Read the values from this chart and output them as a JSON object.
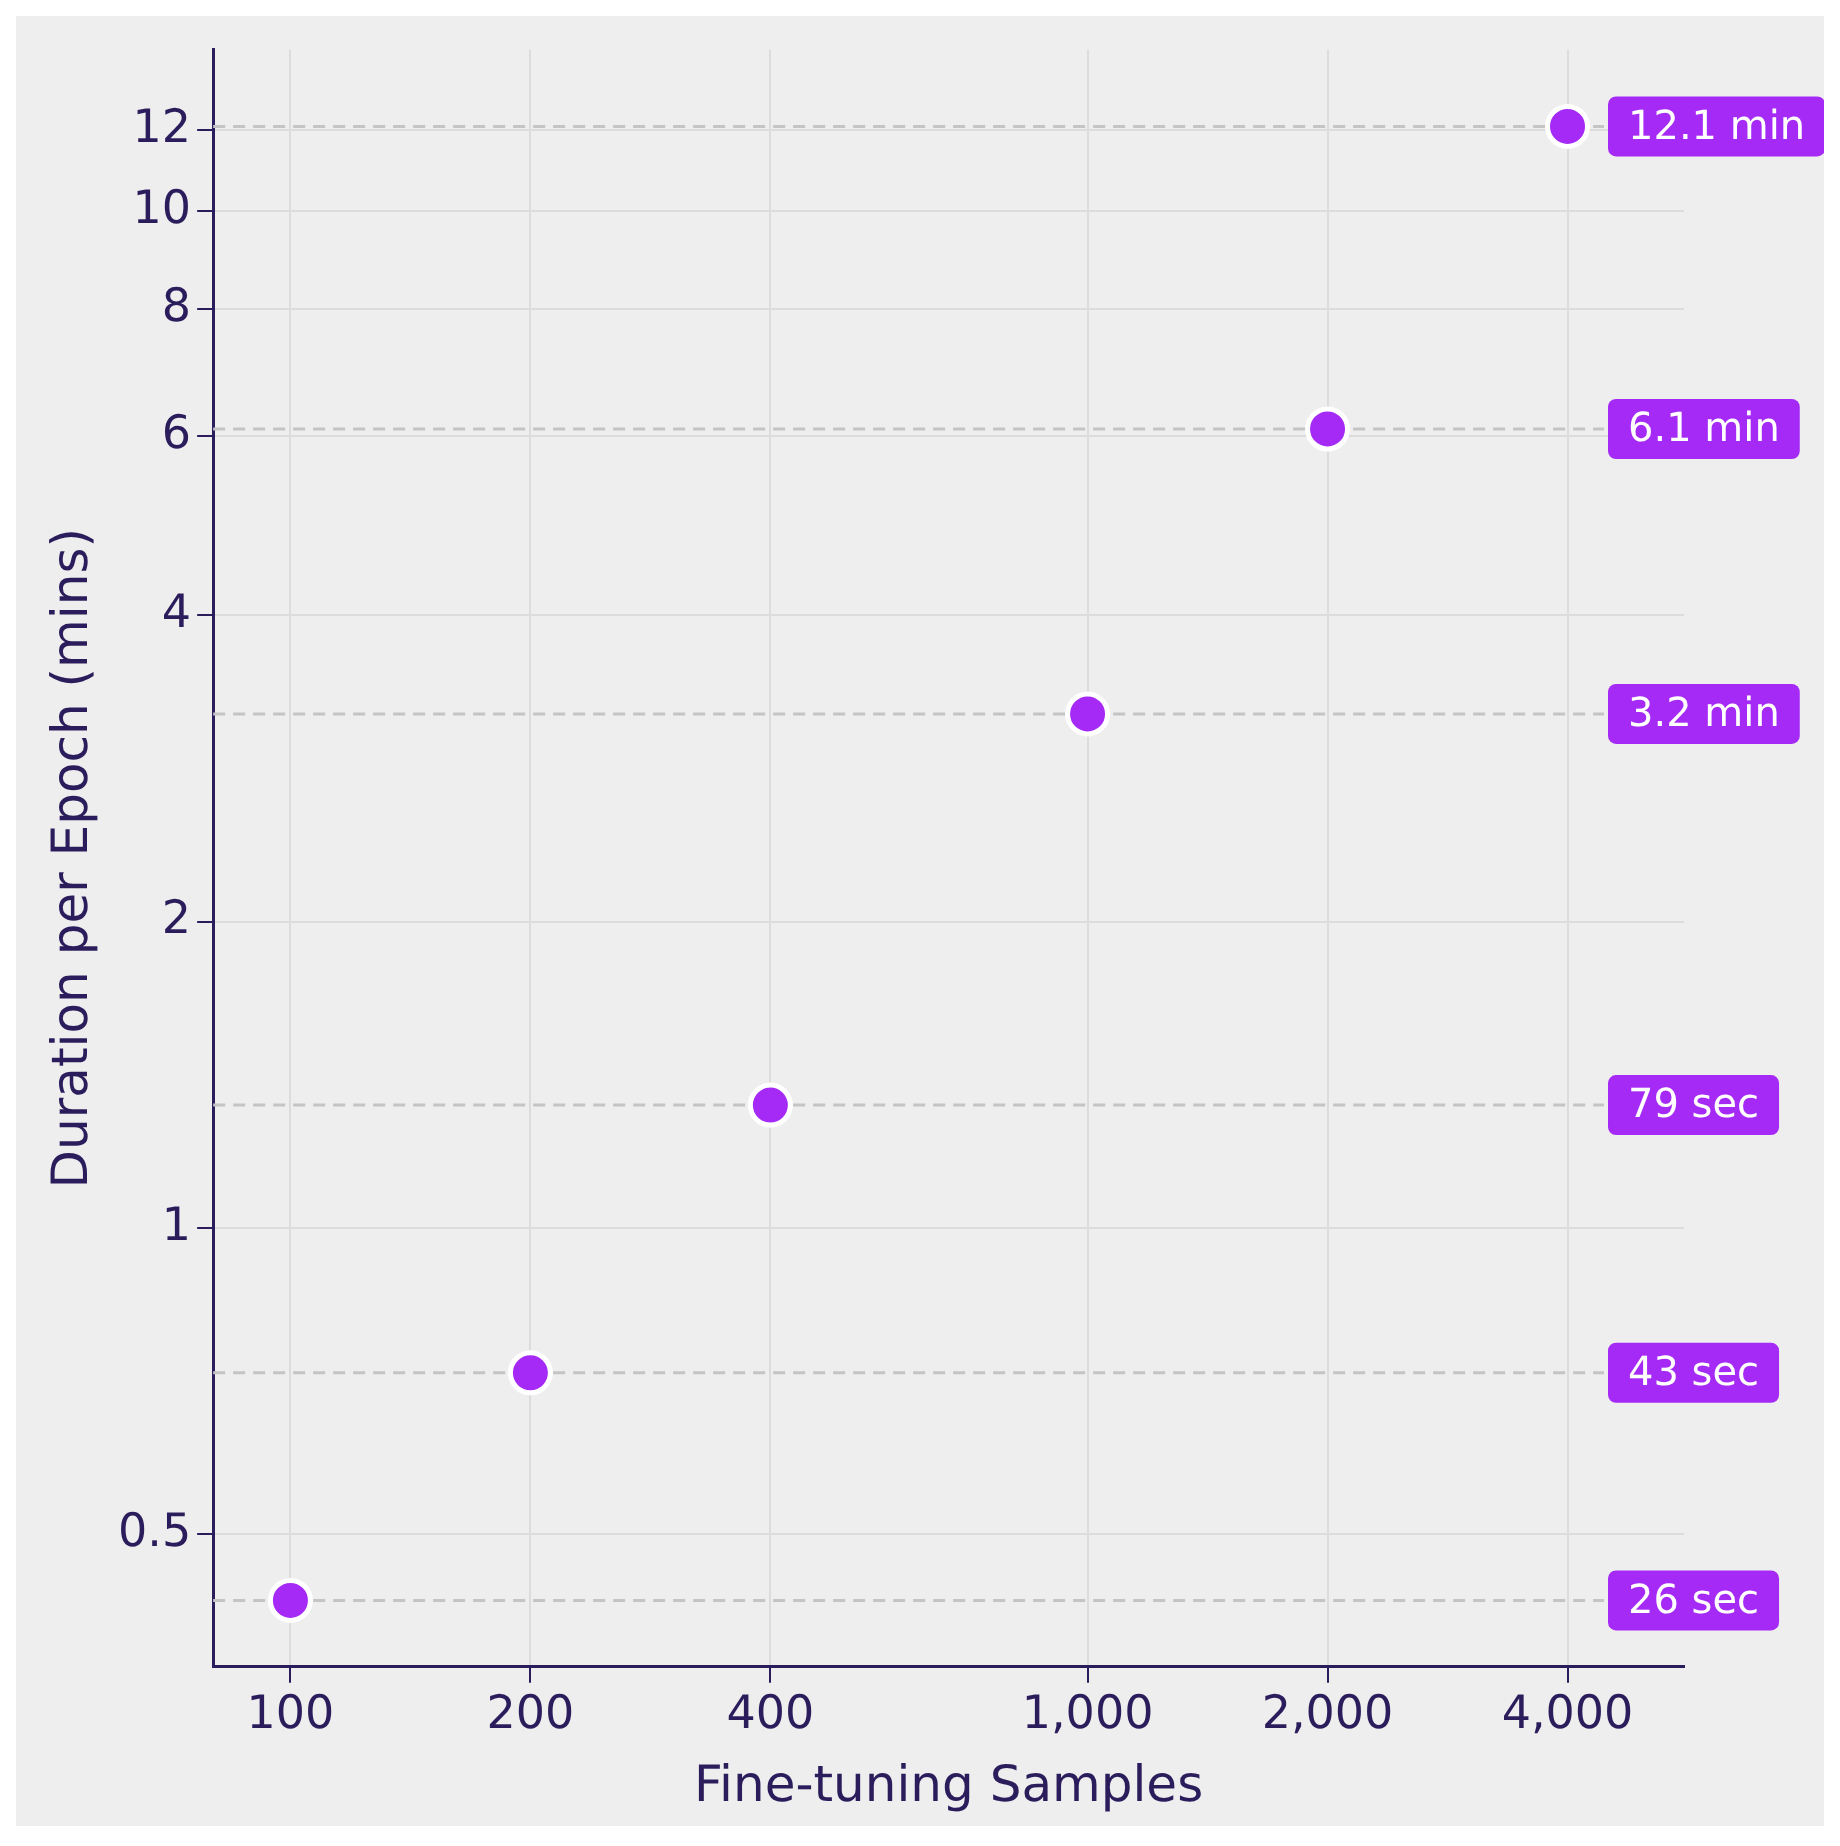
{
  "chart_data": {
    "type": "scatter",
    "xlabel": "Fine-tuning Samples",
    "ylabel": "Duration per Epoch (mins)",
    "x": [
      100,
      200,
      400,
      1000,
      2000,
      4000
    ],
    "series": [
      {
        "color": "#a52af5",
        "values": [
          0.43,
          0.72,
          1.32,
          3.2,
          6.1,
          12.1
        ]
      }
    ],
    "log": "xy",
    "xlim": [
      80,
      5600
    ],
    "ylim": [
      0.37,
      14.4
    ],
    "xticks": [
      100,
      200,
      400,
      {
        "value": 1000,
        "label": "1,000"
      },
      {
        "value": 2000,
        "label": "2,000"
      },
      {
        "value": 4000,
        "label": "4,000"
      }
    ],
    "yticks": [
      0.5,
      1,
      2,
      4,
      6,
      8,
      10,
      12
    ],
    "grid": true,
    "legend": false,
    "marker": "circle",
    "ref_lines": [
      {
        "axis": "y",
        "value": 0.43,
        "label": "26 sec",
        "color": "#c4c4c4",
        "line_style": "dashed"
      },
      {
        "axis": "y",
        "value": 0.72,
        "label": "43 sec",
        "color": "#c4c4c4",
        "line_style": "dashed"
      },
      {
        "axis": "y",
        "value": 1.32,
        "label": "79 sec",
        "color": "#c4c4c4",
        "line_style": "dashed"
      },
      {
        "axis": "y",
        "value": 3.2,
        "label": "3.2 min",
        "color": "#c4c4c4",
        "line_style": "dashed"
      },
      {
        "axis": "y",
        "value": 6.1,
        "label": "6.1 min",
        "color": "#c4c4c4",
        "line_style": "dashed"
      },
      {
        "axis": "y",
        "value": 12.1,
        "label": "12.1 min",
        "color": "#c4c4c4",
        "line_style": "dashed"
      }
    ]
  }
}
